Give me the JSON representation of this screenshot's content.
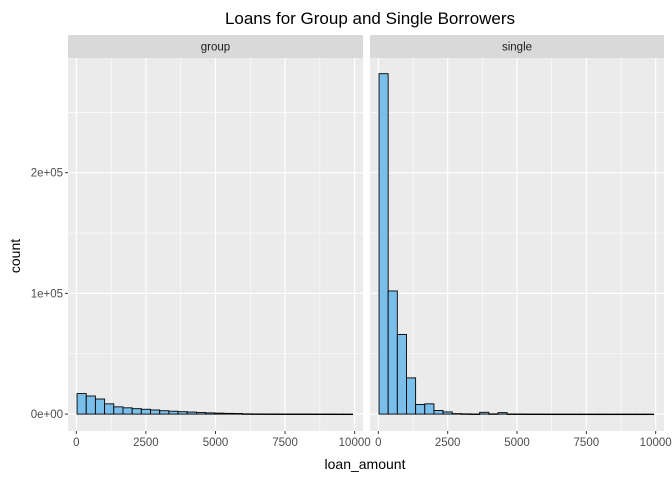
{
  "chart_data": {
    "type": "bar",
    "subtype": "faceted-histogram",
    "title": "Loans for Group and Single Borrowers",
    "xlabel": "loan_amount",
    "ylabel": "count",
    "xlim": [
      -300,
      10300
    ],
    "ylim": [
      -14000,
      295000
    ],
    "x_ticks": [
      0,
      2500,
      5000,
      7500,
      10000
    ],
    "x_tick_labels": [
      "0",
      "2500",
      "5000",
      "7500",
      "10000"
    ],
    "y_ticks": [
      0,
      100000,
      200000
    ],
    "y_tick_labels": [
      "0e+00",
      "1e+05",
      "2e+05"
    ],
    "grid": true,
    "legend": "none",
    "bin_width": 330,
    "bin_start": 25,
    "colors": {
      "panel_bg": "#ebebeb",
      "strip_bg": "#d9d9d9",
      "grid_major": "#ffffff",
      "bar_fill": "#79bfea",
      "bar_outline": "#000000"
    },
    "facets": [
      {
        "name": "group",
        "values": [
          17000,
          15000,
          12500,
          8500,
          6000,
          5200,
          4500,
          4000,
          3400,
          2800,
          2400,
          2000,
          1700,
          1300,
          1000,
          800,
          600,
          500,
          200,
          150,
          120,
          100,
          90,
          80,
          70,
          60,
          50,
          40,
          30,
          20
        ]
      },
      {
        "name": "single",
        "values": [
          282000,
          102000,
          66000,
          30000,
          8000,
          8500,
          3000,
          1800,
          400,
          200,
          100,
          1500,
          200,
          1200,
          100,
          100,
          50,
          50,
          30,
          20,
          20,
          20,
          10,
          10,
          10,
          10,
          10,
          10,
          10,
          10
        ]
      }
    ]
  }
}
